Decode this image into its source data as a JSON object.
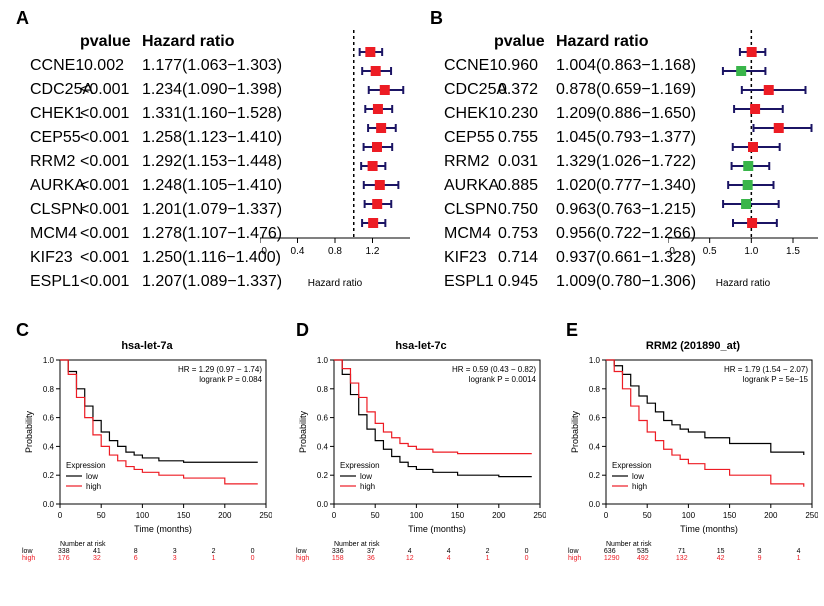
{
  "panelLabels": {
    "A": "A",
    "B": "B",
    "C": "C",
    "D": "D",
    "E": "E"
  },
  "colors": {
    "sigMarker": "#ed1c24",
    "nonsigMarker": "#39b54a",
    "ciLine": "#1b1464",
    "dashLine": "#000000",
    "axis": "#000000",
    "kmLow": "#000000",
    "kmHigh": "#ed1c24",
    "bgWhite": "#ffffff"
  },
  "forest": {
    "headers": {
      "pvalue": "pvalue",
      "hr": "Hazard ratio"
    },
    "axisLabel": "Hazard ratio",
    "genes": [
      "CCNE1",
      "CDC25A",
      "CHEK1",
      "CEP55",
      "RRM2",
      "AURKA",
      "CLSPN",
      "MCM4",
      "KIF23",
      "ESPL1"
    ],
    "A": {
      "xlim": [
        0.0,
        1.6
      ],
      "ticks": [
        0.0,
        0.4,
        0.8,
        1.2
      ],
      "ref": 1.0,
      "rows": [
        {
          "p": "0.002",
          "hrText": "1.177(1.063−1.303)",
          "est": 1.177,
          "lo": 1.063,
          "hi": 1.303,
          "sig": true
        },
        {
          "p": "<0.001",
          "hrText": "1.234(1.090−1.398)",
          "est": 1.234,
          "lo": 1.09,
          "hi": 1.398,
          "sig": true
        },
        {
          "p": "<0.001",
          "hrText": "1.331(1.160−1.528)",
          "est": 1.331,
          "lo": 1.16,
          "hi": 1.528,
          "sig": true
        },
        {
          "p": "<0.001",
          "hrText": "1.258(1.123−1.410)",
          "est": 1.258,
          "lo": 1.123,
          "hi": 1.41,
          "sig": true
        },
        {
          "p": "<0.001",
          "hrText": "1.292(1.153−1.448)",
          "est": 1.292,
          "lo": 1.153,
          "hi": 1.448,
          "sig": true
        },
        {
          "p": "<0.001",
          "hrText": "1.248(1.105−1.410)",
          "est": 1.248,
          "lo": 1.105,
          "hi": 1.41,
          "sig": true
        },
        {
          "p": "<0.001",
          "hrText": "1.201(1.079−1.337)",
          "est": 1.201,
          "lo": 1.079,
          "hi": 1.337,
          "sig": true
        },
        {
          "p": "<0.001",
          "hrText": "1.278(1.107−1.476)",
          "est": 1.278,
          "lo": 1.107,
          "hi": 1.476,
          "sig": true
        },
        {
          "p": "<0.001",
          "hrText": "1.250(1.116−1.400)",
          "est": 1.25,
          "lo": 1.116,
          "hi": 1.4,
          "sig": true
        },
        {
          "p": "<0.001",
          "hrText": "1.207(1.089−1.337)",
          "est": 1.207,
          "lo": 1.089,
          "hi": 1.337,
          "sig": true
        }
      ]
    },
    "B": {
      "xlim": [
        0.0,
        1.8
      ],
      "ticks": [
        0.0,
        0.5,
        1.0,
        1.5
      ],
      "ref": 1.0,
      "rows": [
        {
          "p": "0.960",
          "hrText": "1.004(0.863−1.168)",
          "est": 1.004,
          "lo": 0.863,
          "hi": 1.168,
          "sig": false,
          "col": "sig"
        },
        {
          "p": "0.372",
          "hrText": "0.878(0.659−1.169)",
          "est": 0.878,
          "lo": 0.659,
          "hi": 1.169,
          "sig": false,
          "col": "ns"
        },
        {
          "p": "0.230",
          "hrText": "1.209(0.886−1.650)",
          "est": 1.209,
          "lo": 0.886,
          "hi": 1.65,
          "sig": false,
          "col": "sig"
        },
        {
          "p": "0.755",
          "hrText": "1.045(0.793−1.377)",
          "est": 1.045,
          "lo": 0.793,
          "hi": 1.377,
          "sig": false,
          "col": "sig"
        },
        {
          "p": "0.031",
          "hrText": "1.329(1.026−1.722)",
          "est": 1.329,
          "lo": 1.026,
          "hi": 1.722,
          "sig": true,
          "col": "sig"
        },
        {
          "p": "0.885",
          "hrText": "1.020(0.777−1.340)",
          "est": 1.02,
          "lo": 0.777,
          "hi": 1.34,
          "sig": false,
          "col": "sig"
        },
        {
          "p": "0.750",
          "hrText": "0.963(0.763−1.215)",
          "est": 0.963,
          "lo": 0.763,
          "hi": 1.215,
          "sig": false,
          "col": "ns"
        },
        {
          "p": "0.753",
          "hrText": "0.956(0.722−1.266)",
          "est": 0.956,
          "lo": 0.722,
          "hi": 1.266,
          "sig": false,
          "col": "ns"
        },
        {
          "p": "0.714",
          "hrText": "0.937(0.661−1.328)",
          "est": 0.937,
          "lo": 0.661,
          "hi": 1.328,
          "sig": false,
          "col": "ns"
        },
        {
          "p": "0.945",
          "hrText": "1.009(0.780−1.306)",
          "est": 1.009,
          "lo": 0.78,
          "hi": 1.306,
          "sig": false,
          "col": "sig"
        }
      ]
    }
  },
  "km": {
    "xLabel": "Time (months)",
    "yLabel": "Probability",
    "legendTitle": "Expression",
    "legendLow": "low",
    "legendHigh": "high",
    "riskHeader": "Number at risk",
    "C": {
      "title": "hsa-let-7a",
      "hr": "HR = 1.29 (0.97 − 1.74)",
      "p": "logrank P = 0.084",
      "xlim": [
        0,
        250
      ],
      "xticks": [
        0,
        50,
        100,
        150,
        200,
        250
      ],
      "ylim": [
        0,
        1
      ],
      "yticks": [
        0.0,
        0.2,
        0.4,
        0.6,
        0.8,
        1.0
      ],
      "low": [
        [
          0,
          1.0
        ],
        [
          10,
          0.92
        ],
        [
          20,
          0.8
        ],
        [
          30,
          0.68
        ],
        [
          40,
          0.58
        ],
        [
          50,
          0.5
        ],
        [
          60,
          0.44
        ],
        [
          70,
          0.4
        ],
        [
          80,
          0.36
        ],
        [
          90,
          0.34
        ],
        [
          100,
          0.32
        ],
        [
          120,
          0.3
        ],
        [
          150,
          0.29
        ],
        [
          200,
          0.29
        ],
        [
          240,
          0.29
        ]
      ],
      "high": [
        [
          0,
          1.0
        ],
        [
          10,
          0.9
        ],
        [
          20,
          0.74
        ],
        [
          30,
          0.6
        ],
        [
          40,
          0.48
        ],
        [
          50,
          0.4
        ],
        [
          60,
          0.34
        ],
        [
          70,
          0.3
        ],
        [
          80,
          0.26
        ],
        [
          90,
          0.24
        ],
        [
          100,
          0.22
        ],
        [
          120,
          0.2
        ],
        [
          150,
          0.18
        ],
        [
          200,
          0.14
        ],
        [
          240,
          0.14
        ]
      ],
      "riskLow": [
        "338",
        "41",
        "8",
        "3",
        "2",
        "0"
      ],
      "riskHigh": [
        "176",
        "32",
        "6",
        "3",
        "1",
        "0"
      ]
    },
    "D": {
      "title": "hsa-let-7c",
      "hr": "HR = 0.59 (0.43 − 0.82)",
      "p": "logrank P = 0.0014",
      "xlim": [
        0,
        250
      ],
      "xticks": [
        0,
        50,
        100,
        150,
        200,
        250
      ],
      "ylim": [
        0,
        1
      ],
      "yticks": [
        0.0,
        0.2,
        0.4,
        0.6,
        0.8,
        1.0
      ],
      "low": [
        [
          0,
          1.0
        ],
        [
          10,
          0.9
        ],
        [
          20,
          0.76
        ],
        [
          30,
          0.62
        ],
        [
          40,
          0.52
        ],
        [
          50,
          0.44
        ],
        [
          60,
          0.38
        ],
        [
          70,
          0.33
        ],
        [
          80,
          0.29
        ],
        [
          90,
          0.26
        ],
        [
          100,
          0.24
        ],
        [
          120,
          0.22
        ],
        [
          150,
          0.2
        ],
        [
          200,
          0.19
        ],
        [
          240,
          0.19
        ]
      ],
      "high": [
        [
          0,
          1.0
        ],
        [
          10,
          0.94
        ],
        [
          20,
          0.84
        ],
        [
          30,
          0.74
        ],
        [
          40,
          0.64
        ],
        [
          50,
          0.56
        ],
        [
          60,
          0.5
        ],
        [
          70,
          0.46
        ],
        [
          80,
          0.42
        ],
        [
          90,
          0.4
        ],
        [
          100,
          0.38
        ],
        [
          120,
          0.36
        ],
        [
          150,
          0.35
        ],
        [
          200,
          0.35
        ],
        [
          240,
          0.35
        ]
      ],
      "riskLow": [
        "336",
        "37",
        "4",
        "4",
        "2",
        "0"
      ],
      "riskHigh": [
        "158",
        "36",
        "12",
        "4",
        "1",
        "0"
      ]
    },
    "E": {
      "title": "RRM2 (201890_at)",
      "hr": "HR = 1.79 (1.54 − 2.07)",
      "p": "logrank P = 5e−15",
      "xlim": [
        0,
        250
      ],
      "xticks": [
        0,
        50,
        100,
        150,
        200,
        250
      ],
      "ylim": [
        0,
        1
      ],
      "yticks": [
        0.0,
        0.2,
        0.4,
        0.6,
        0.8,
        1.0
      ],
      "low": [
        [
          0,
          1.0
        ],
        [
          10,
          0.96
        ],
        [
          20,
          0.9
        ],
        [
          30,
          0.82
        ],
        [
          40,
          0.75
        ],
        [
          50,
          0.7
        ],
        [
          60,
          0.64
        ],
        [
          70,
          0.58
        ],
        [
          80,
          0.55
        ],
        [
          90,
          0.52
        ],
        [
          100,
          0.5
        ],
        [
          120,
          0.46
        ],
        [
          150,
          0.42
        ],
        [
          200,
          0.36
        ],
        [
          240,
          0.34
        ]
      ],
      "high": [
        [
          0,
          1.0
        ],
        [
          10,
          0.92
        ],
        [
          20,
          0.8
        ],
        [
          30,
          0.68
        ],
        [
          40,
          0.58
        ],
        [
          50,
          0.5
        ],
        [
          60,
          0.44
        ],
        [
          70,
          0.38
        ],
        [
          80,
          0.34
        ],
        [
          90,
          0.31
        ],
        [
          100,
          0.28
        ],
        [
          120,
          0.24
        ],
        [
          150,
          0.2
        ],
        [
          200,
          0.14
        ],
        [
          240,
          0.12
        ]
      ],
      "riskLow": [
        "636",
        "535",
        "71",
        "15",
        "3",
        "4"
      ],
      "riskHigh": [
        "1290",
        "492",
        "132",
        "42",
        "9",
        "1"
      ]
    }
  }
}
